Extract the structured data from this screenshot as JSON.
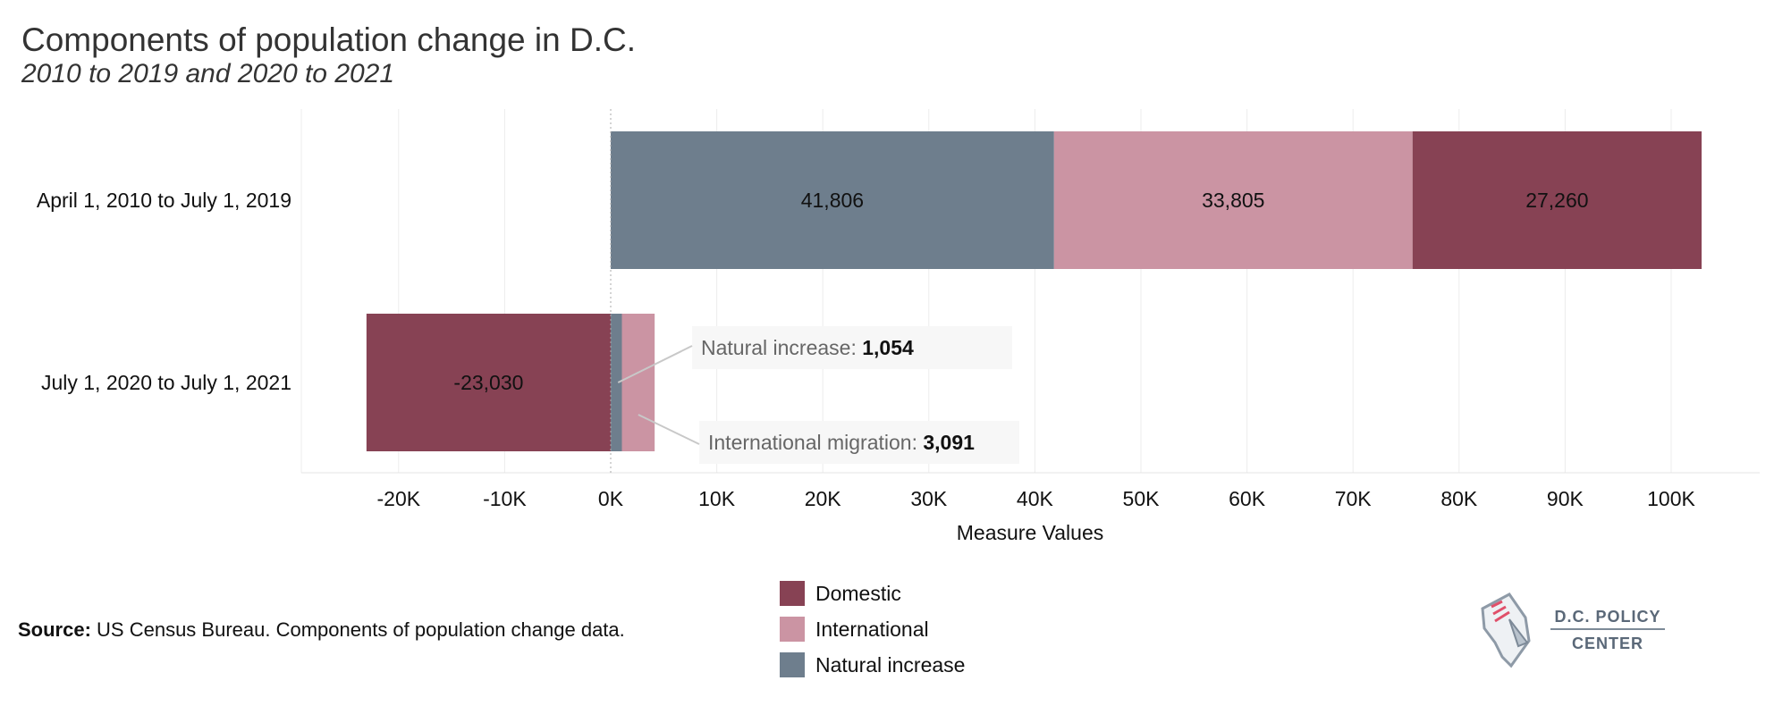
{
  "title": "Components of population change in D.C.",
  "subtitle": "2010 to 2019 and 2020 to 2021",
  "source_label": "Source:",
  "source_text": " US Census Bureau. Components of population change data.",
  "logo": {
    "line1": "D.C. POLICY",
    "line2": "CENTER"
  },
  "colors": {
    "Domestic": "#874254",
    "International": "#cb94a3",
    "Natural increase": "#6e7e8d"
  },
  "chart_data": {
    "type": "bar",
    "orientation": "horizontal",
    "stacked": true,
    "categories": [
      "April 1, 2010 to July 1, 2019",
      "July 1, 2020 to July 1, 2021"
    ],
    "series": [
      {
        "name": "Natural increase",
        "values": [
          41806,
          1054
        ]
      },
      {
        "name": "International",
        "values": [
          33805,
          3091
        ]
      },
      {
        "name": "Domestic",
        "values": [
          27260,
          -23030
        ]
      }
    ],
    "data_labels": [
      "41,806",
      "33,805",
      "27,260",
      "-23,030"
    ],
    "annotations": [
      {
        "label": "Natural increase:",
        "value": "1,054"
      },
      {
        "label": "International migration:",
        "value": "3,091"
      }
    ],
    "xlabel": "Measure Values",
    "xlim": [
      -29000,
      109000
    ],
    "ticks": [
      -20000,
      -10000,
      0,
      10000,
      20000,
      30000,
      40000,
      50000,
      60000,
      70000,
      80000,
      90000,
      100000
    ],
    "tick_labels": [
      "-20K",
      "-10K",
      "0K",
      "10K",
      "20K",
      "30K",
      "40K",
      "50K",
      "60K",
      "70K",
      "80K",
      "90K",
      "100K"
    ],
    "legend": [
      "Domestic",
      "International",
      "Natural increase"
    ],
    "legend_position": "bottom-center",
    "grid": true
  }
}
